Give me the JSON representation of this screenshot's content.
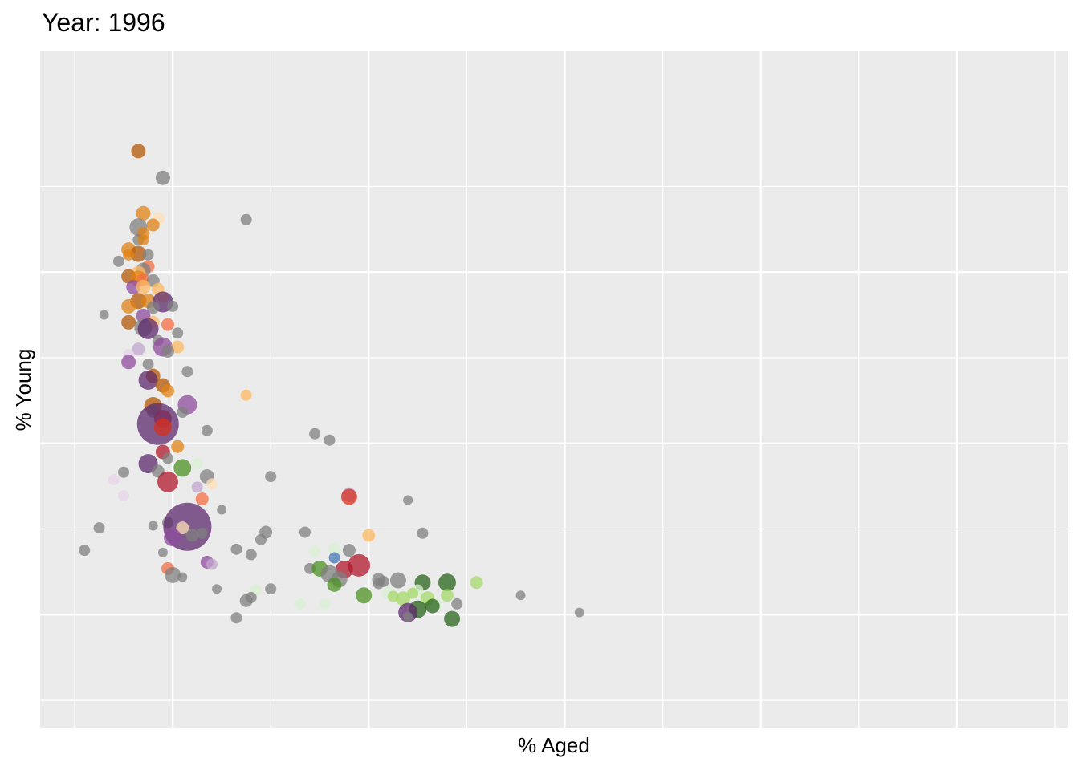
{
  "chart_data": {
    "type": "scatter",
    "title": "Year: 1996",
    "xlabel": "% Aged",
    "ylabel": "% Young",
    "x_tick_labels": [],
    "y_tick_labels": [],
    "grid": true,
    "legend": "none",
    "panel_color": "#EBEBEB",
    "grid_color": "#FFFFFF",
    "xlim": [
      0,
      20
    ],
    "ylim": [
      0,
      55
    ],
    "x_major_ticks": [
      2,
      6,
      10,
      14,
      18
    ],
    "x_minor_ticks": [
      0,
      4,
      8,
      12,
      16,
      20
    ],
    "y_major_ticks": [
      8,
      24,
      40
    ],
    "y_minor_ticks": [
      0,
      16,
      32,
      48
    ],
    "palette": {
      "grey": "#808080",
      "orange": "#E08214",
      "brown": "#B35806",
      "peach": "#FDB863",
      "lightpeach": "#FEE0B6",
      "purple": "#8E4C9E",
      "darkpurple": "#5E2A6E",
      "lavender": "#C2A5CF",
      "lightlavender": "#E7D4E8",
      "red": "#D7301F",
      "crimson": "#B2182B",
      "salmon": "#F46D43",
      "green": "#4D9221",
      "darkgreen": "#276419",
      "lightgreen": "#A6D96A",
      "palegreen": "#D9F0D3",
      "blue": "#4575B4"
    },
    "points": [
      {
        "x": 1.3,
        "y": 51.3,
        "size": 9,
        "color": "brown"
      },
      {
        "x": 1.8,
        "y": 48.8,
        "size": 9,
        "color": "grey"
      },
      {
        "x": 1.7,
        "y": 45.0,
        "size": 8,
        "color": "lightpeach"
      },
      {
        "x": 3.5,
        "y": 44.9,
        "size": 7,
        "color": "grey"
      },
      {
        "x": 1.4,
        "y": 45.5,
        "size": 9,
        "color": "orange"
      },
      {
        "x": 1.6,
        "y": 44.4,
        "size": 8,
        "color": "orange"
      },
      {
        "x": 1.3,
        "y": 44.2,
        "size": 11,
        "color": "grey"
      },
      {
        "x": 1.4,
        "y": 43.6,
        "size": 8,
        "color": "orange"
      },
      {
        "x": 1.3,
        "y": 43.0,
        "size": 7,
        "color": "grey"
      },
      {
        "x": 1.4,
        "y": 43.0,
        "size": 7,
        "color": "orange"
      },
      {
        "x": 1.1,
        "y": 42.1,
        "size": 9,
        "color": "orange"
      },
      {
        "x": 1.3,
        "y": 41.7,
        "size": 10,
        "color": "brown"
      },
      {
        "x": 1.1,
        "y": 41.6,
        "size": 7,
        "color": "orange"
      },
      {
        "x": 1.5,
        "y": 41.6,
        "size": 7,
        "color": "grey"
      },
      {
        "x": 0.9,
        "y": 41.0,
        "size": 7,
        "color": "grey"
      },
      {
        "x": 1.5,
        "y": 40.5,
        "size": 8,
        "color": "salmon"
      },
      {
        "x": 1.4,
        "y": 40.2,
        "size": 9,
        "color": "grey"
      },
      {
        "x": 1.3,
        "y": 39.9,
        "size": 9,
        "color": "peach"
      },
      {
        "x": 1.1,
        "y": 39.6,
        "size": 9,
        "color": "brown"
      },
      {
        "x": 1.3,
        "y": 39.4,
        "size": 10,
        "color": "orange"
      },
      {
        "x": 1.4,
        "y": 39.3,
        "size": 8,
        "color": "salmon"
      },
      {
        "x": 1.6,
        "y": 39.2,
        "size": 8,
        "color": "grey"
      },
      {
        "x": 1.2,
        "y": 38.6,
        "size": 9,
        "color": "purple"
      },
      {
        "x": 1.4,
        "y": 38.6,
        "size": 9,
        "color": "peach"
      },
      {
        "x": 1.7,
        "y": 38.4,
        "size": 8,
        "color": "peach"
      },
      {
        "x": 1.8,
        "y": 37.7,
        "size": 7,
        "color": "peach"
      },
      {
        "x": 1.3,
        "y": 37.3,
        "size": 10,
        "color": "brown"
      },
      {
        "x": 1.5,
        "y": 37.3,
        "size": 9,
        "color": "orange"
      },
      {
        "x": 1.8,
        "y": 37.2,
        "size": 13,
        "color": "darkpurple"
      },
      {
        "x": 1.1,
        "y": 36.8,
        "size": 9,
        "color": "orange"
      },
      {
        "x": 1.6,
        "y": 36.7,
        "size": 8,
        "color": "grey"
      },
      {
        "x": 2.0,
        "y": 36.8,
        "size": 7,
        "color": "grey"
      },
      {
        "x": 0.6,
        "y": 36.0,
        "size": 6,
        "color": "grey"
      },
      {
        "x": 1.4,
        "y": 35.9,
        "size": 9,
        "color": "purple"
      },
      {
        "x": 1.1,
        "y": 35.3,
        "size": 9,
        "color": "brown"
      },
      {
        "x": 1.6,
        "y": 35.3,
        "size": 8,
        "color": "peach"
      },
      {
        "x": 1.9,
        "y": 35.1,
        "size": 8,
        "color": "salmon"
      },
      {
        "x": 1.4,
        "y": 34.8,
        "size": 11,
        "color": "grey"
      },
      {
        "x": 1.5,
        "y": 34.7,
        "size": 13,
        "color": "darkpurple"
      },
      {
        "x": 2.1,
        "y": 34.3,
        "size": 7,
        "color": "grey"
      },
      {
        "x": 1.7,
        "y": 33.6,
        "size": 7,
        "color": "grey"
      },
      {
        "x": 1.8,
        "y": 33.0,
        "size": 12,
        "color": "purple"
      },
      {
        "x": 2.1,
        "y": 33.0,
        "size": 8,
        "color": "peach"
      },
      {
        "x": 1.9,
        "y": 32.6,
        "size": 8,
        "color": "grey"
      },
      {
        "x": 1.3,
        "y": 32.8,
        "size": 8,
        "color": "lavender"
      },
      {
        "x": 1.1,
        "y": 32.3,
        "size": 7,
        "color": "lightlavender"
      },
      {
        "x": 1.1,
        "y": 31.6,
        "size": 9,
        "color": "purple"
      },
      {
        "x": 1.5,
        "y": 31.4,
        "size": 7,
        "color": "grey"
      },
      {
        "x": 1.6,
        "y": 30.3,
        "size": 9,
        "color": "brown"
      },
      {
        "x": 2.3,
        "y": 30.7,
        "size": 7,
        "color": "grey"
      },
      {
        "x": 1.5,
        "y": 29.9,
        "size": 12,
        "color": "darkpurple"
      },
      {
        "x": 1.8,
        "y": 29.4,
        "size": 9,
        "color": "brown"
      },
      {
        "x": 1.9,
        "y": 28.9,
        "size": 8,
        "color": "orange"
      },
      {
        "x": 3.5,
        "y": 28.5,
        "size": 7,
        "color": "peach"
      },
      {
        "x": 1.6,
        "y": 27.5,
        "size": 11,
        "color": "brown"
      },
      {
        "x": 2.3,
        "y": 27.6,
        "size": 12,
        "color": "purple"
      },
      {
        "x": 1.6,
        "y": 27.0,
        "size": 8,
        "color": "grey"
      },
      {
        "x": 2.2,
        "y": 26.9,
        "size": 7,
        "color": "grey"
      },
      {
        "x": 1.8,
        "y": 26.3,
        "size": 11,
        "color": "red"
      },
      {
        "x": 1.7,
        "y": 25.8,
        "size": 26,
        "color": "darkpurple"
      },
      {
        "x": 1.8,
        "y": 25.5,
        "size": 11,
        "color": "red"
      },
      {
        "x": 2.7,
        "y": 25.2,
        "size": 7,
        "color": "grey"
      },
      {
        "x": 4.9,
        "y": 24.9,
        "size": 7,
        "color": "grey"
      },
      {
        "x": 5.2,
        "y": 24.3,
        "size": 7,
        "color": "grey"
      },
      {
        "x": 2.1,
        "y": 23.7,
        "size": 8,
        "color": "orange"
      },
      {
        "x": 1.8,
        "y": 23.2,
        "size": 9,
        "color": "crimson"
      },
      {
        "x": 1.9,
        "y": 22.6,
        "size": 7,
        "color": "grey"
      },
      {
        "x": 1.5,
        "y": 22.1,
        "size": 12,
        "color": "darkpurple"
      },
      {
        "x": 2.5,
        "y": 22.1,
        "size": 7,
        "color": "palegreen"
      },
      {
        "x": 2.2,
        "y": 21.7,
        "size": 11,
        "color": "green"
      },
      {
        "x": 1.7,
        "y": 21.4,
        "size": 8,
        "color": "grey"
      },
      {
        "x": 1.0,
        "y": 21.3,
        "size": 7,
        "color": "grey"
      },
      {
        "x": 2.7,
        "y": 20.9,
        "size": 9,
        "color": "grey"
      },
      {
        "x": 4.0,
        "y": 20.9,
        "size": 7,
        "color": "grey"
      },
      {
        "x": 0.8,
        "y": 20.6,
        "size": 7,
        "color": "lightlavender"
      },
      {
        "x": 1.9,
        "y": 20.4,
        "size": 13,
        "color": "crimson"
      },
      {
        "x": 2.8,
        "y": 20.2,
        "size": 7,
        "color": "lightpeach"
      },
      {
        "x": 2.5,
        "y": 19.9,
        "size": 7,
        "color": "lavender"
      },
      {
        "x": 5.6,
        "y": 19.2,
        "size": 9,
        "color": "lavender"
      },
      {
        "x": 5.6,
        "y": 19.0,
        "size": 10,
        "color": "red"
      },
      {
        "x": 1.0,
        "y": 19.1,
        "size": 7,
        "color": "lightlavender"
      },
      {
        "x": 2.6,
        "y": 18.8,
        "size": 8,
        "color": "salmon"
      },
      {
        "x": 6.8,
        "y": 18.7,
        "size": 6,
        "color": "grey"
      },
      {
        "x": 3.0,
        "y": 17.8,
        "size": 6,
        "color": "grey"
      },
      {
        "x": 1.9,
        "y": 16.6,
        "size": 7,
        "color": "grey"
      },
      {
        "x": 1.6,
        "y": 16.3,
        "size": 6,
        "color": "grey"
      },
      {
        "x": 0.5,
        "y": 16.1,
        "size": 7,
        "color": "grey"
      },
      {
        "x": 2.3,
        "y": 16.2,
        "size": 30,
        "color": "darkpurple"
      },
      {
        "x": 2.2,
        "y": 16.1,
        "size": 8,
        "color": "lightpeach"
      },
      {
        "x": 2.6,
        "y": 15.6,
        "size": 7,
        "color": "grey"
      },
      {
        "x": 3.9,
        "y": 15.7,
        "size": 8,
        "color": "grey"
      },
      {
        "x": 4.7,
        "y": 15.7,
        "size": 7,
        "color": "grey"
      },
      {
        "x": 7.1,
        "y": 15.6,
        "size": 7,
        "color": "grey"
      },
      {
        "x": 6.0,
        "y": 15.4,
        "size": 8,
        "color": "peach"
      },
      {
        "x": 2.0,
        "y": 15.2,
        "size": 11,
        "color": "purple"
      },
      {
        "x": 2.4,
        "y": 15.4,
        "size": 8,
        "color": "grey"
      },
      {
        "x": 3.8,
        "y": 15.0,
        "size": 7,
        "color": "grey"
      },
      {
        "x": 0.2,
        "y": 14.0,
        "size": 7,
        "color": "grey"
      },
      {
        "x": 3.3,
        "y": 14.1,
        "size": 7,
        "color": "grey"
      },
      {
        "x": 4.9,
        "y": 13.9,
        "size": 7,
        "color": "palegreen"
      },
      {
        "x": 5.3,
        "y": 14.1,
        "size": 8,
        "color": "palegreen"
      },
      {
        "x": 5.6,
        "y": 14.0,
        "size": 8,
        "color": "grey"
      },
      {
        "x": 1.8,
        "y": 13.8,
        "size": 6,
        "color": "grey"
      },
      {
        "x": 3.6,
        "y": 13.6,
        "size": 7,
        "color": "grey"
      },
      {
        "x": 5.3,
        "y": 13.3,
        "size": 7,
        "color": "blue"
      },
      {
        "x": 2.7,
        "y": 12.9,
        "size": 8,
        "color": "purple"
      },
      {
        "x": 2.8,
        "y": 12.7,
        "size": 7,
        "color": "lavender"
      },
      {
        "x": 5.8,
        "y": 12.6,
        "size": 14,
        "color": "crimson"
      },
      {
        "x": 1.9,
        "y": 12.3,
        "size": 8,
        "color": "salmon"
      },
      {
        "x": 4.8,
        "y": 12.3,
        "size": 7,
        "color": "grey"
      },
      {
        "x": 5.0,
        "y": 12.3,
        "size": 10,
        "color": "green"
      },
      {
        "x": 5.5,
        "y": 12.2,
        "size": 11,
        "color": "crimson"
      },
      {
        "x": 5.2,
        "y": 11.8,
        "size": 11,
        "color": "grey"
      },
      {
        "x": 2.0,
        "y": 11.7,
        "size": 10,
        "color": "grey"
      },
      {
        "x": 2.2,
        "y": 11.5,
        "size": 6,
        "color": "grey"
      },
      {
        "x": 5.4,
        "y": 11.3,
        "size": 10,
        "color": "grey"
      },
      {
        "x": 6.2,
        "y": 11.3,
        "size": 8,
        "color": "grey"
      },
      {
        "x": 6.6,
        "y": 11.2,
        "size": 10,
        "color": "grey"
      },
      {
        "x": 6.3,
        "y": 11.1,
        "size": 7,
        "color": "grey"
      },
      {
        "x": 7.1,
        "y": 11.0,
        "size": 10,
        "color": "darkgreen"
      },
      {
        "x": 7.6,
        "y": 11.0,
        "size": 11,
        "color": "darkgreen"
      },
      {
        "x": 8.2,
        "y": 11.0,
        "size": 8,
        "color": "lightgreen"
      },
      {
        "x": 5.3,
        "y": 10.8,
        "size": 9,
        "color": "green"
      },
      {
        "x": 6.2,
        "y": 10.9,
        "size": 7,
        "color": "grey"
      },
      {
        "x": 2.9,
        "y": 10.4,
        "size": 6,
        "color": "grey"
      },
      {
        "x": 4.0,
        "y": 10.4,
        "size": 7,
        "color": "grey"
      },
      {
        "x": 3.7,
        "y": 10.3,
        "size": 7,
        "color": "palegreen"
      },
      {
        "x": 7.0,
        "y": 10.3,
        "size": 7,
        "color": "palegreen"
      },
      {
        "x": 6.4,
        "y": 10.0,
        "size": 8,
        "color": "palegreen"
      },
      {
        "x": 6.9,
        "y": 10.0,
        "size": 7,
        "color": "lightgreen"
      },
      {
        "x": 5.9,
        "y": 9.8,
        "size": 10,
        "color": "green"
      },
      {
        "x": 6.5,
        "y": 9.7,
        "size": 7,
        "color": "lightgreen"
      },
      {
        "x": 7.6,
        "y": 9.8,
        "size": 8,
        "color": "lightgreen"
      },
      {
        "x": 9.1,
        "y": 9.8,
        "size": 6,
        "color": "grey"
      },
      {
        "x": 3.6,
        "y": 9.6,
        "size": 7,
        "color": "grey"
      },
      {
        "x": 6.7,
        "y": 9.5,
        "size": 9,
        "color": "lightgreen"
      },
      {
        "x": 7.2,
        "y": 9.5,
        "size": 9,
        "color": "lightgreen"
      },
      {
        "x": 3.5,
        "y": 9.3,
        "size": 8,
        "color": "grey"
      },
      {
        "x": 4.6,
        "y": 9.0,
        "size": 7,
        "color": "palegreen"
      },
      {
        "x": 5.1,
        "y": 9.0,
        "size": 7,
        "color": "palegreen"
      },
      {
        "x": 7.4,
        "y": 9.0,
        "size": 7,
        "color": "palegreen"
      },
      {
        "x": 7.8,
        "y": 9.0,
        "size": 7,
        "color": "grey"
      },
      {
        "x": 7.3,
        "y": 8.8,
        "size": 9,
        "color": "darkgreen"
      },
      {
        "x": 7.0,
        "y": 8.5,
        "size": 11,
        "color": "darkgreen"
      },
      {
        "x": 6.8,
        "y": 8.2,
        "size": 12,
        "color": "darkpurple"
      },
      {
        "x": 6.8,
        "y": 7.8,
        "size": 6,
        "color": "grey"
      },
      {
        "x": 10.3,
        "y": 8.2,
        "size": 6,
        "color": "grey"
      },
      {
        "x": 3.3,
        "y": 7.7,
        "size": 7,
        "color": "grey"
      },
      {
        "x": 7.7,
        "y": 7.6,
        "size": 10,
        "color": "darkgreen"
      }
    ]
  }
}
